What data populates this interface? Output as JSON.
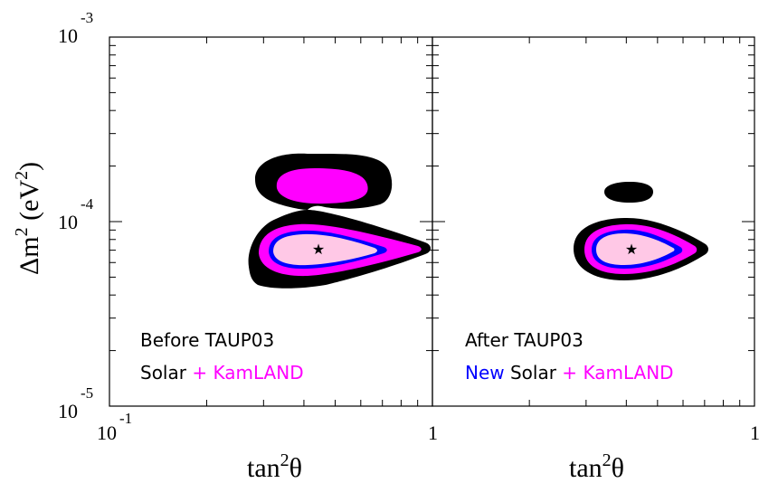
{
  "chart_data": {
    "type": "contour",
    "ylabel_main": "Δm",
    "ylabel_sup": "2",
    "ylabel_unit_open": " (eV",
    "ylabel_unit_sup": "2",
    "ylabel_unit_close": ")",
    "xlabel_main": "tan",
    "xlabel_sup": "2",
    "xlabel_theta": "θ",
    "y_tick_labels": [
      {
        "value": 0.001,
        "base": "10",
        "exp": "-3"
      },
      {
        "value": 0.0001,
        "base": "10",
        "exp": "-4"
      },
      {
        "value": 1e-05,
        "base": "10",
        "exp": "-5"
      }
    ],
    "x_scale": "log",
    "y_scale": "log",
    "ylim": [
      1e-05,
      0.001
    ],
    "colors": {
      "outer": "#000000",
      "kamland": "#ff00ff",
      "inner": "#ffc8e6",
      "new_solar": "#0000ff"
    },
    "panels": [
      {
        "xlim": [
          0.1,
          1
        ],
        "x_tick_labels": [
          {
            "value": 0.1,
            "base": "10",
            "exp": "-1"
          },
          {
            "value": 1,
            "base": "1",
            "exp": ""
          }
        ],
        "best_fit": {
          "x": 0.45,
          "y": 7.1e-05
        },
        "legend_line1": "Before TAUP03",
        "legend_line2": [
          {
            "text": "Solar",
            "color": "#000000"
          },
          {
            "text": " + ",
            "color": "#ff00ff"
          },
          {
            "text": "KamLAND",
            "color": "#ff00ff"
          }
        ]
      },
      {
        "xlim": [
          0.1,
          1
        ],
        "x_tick_labels": [
          {
            "value": 1,
            "base": "1",
            "exp": ""
          }
        ],
        "best_fit": {
          "x": 0.41,
          "y": 7.1e-05
        },
        "legend_line1": "After TAUP03",
        "legend_line2": [
          {
            "text": "New",
            "color": "#0000ff"
          },
          {
            "text": " Solar",
            "color": "#000000"
          },
          {
            "text": " + ",
            "color": "#ff00ff"
          },
          {
            "text": "KamLAND",
            "color": "#ff00ff"
          }
        ]
      }
    ]
  }
}
